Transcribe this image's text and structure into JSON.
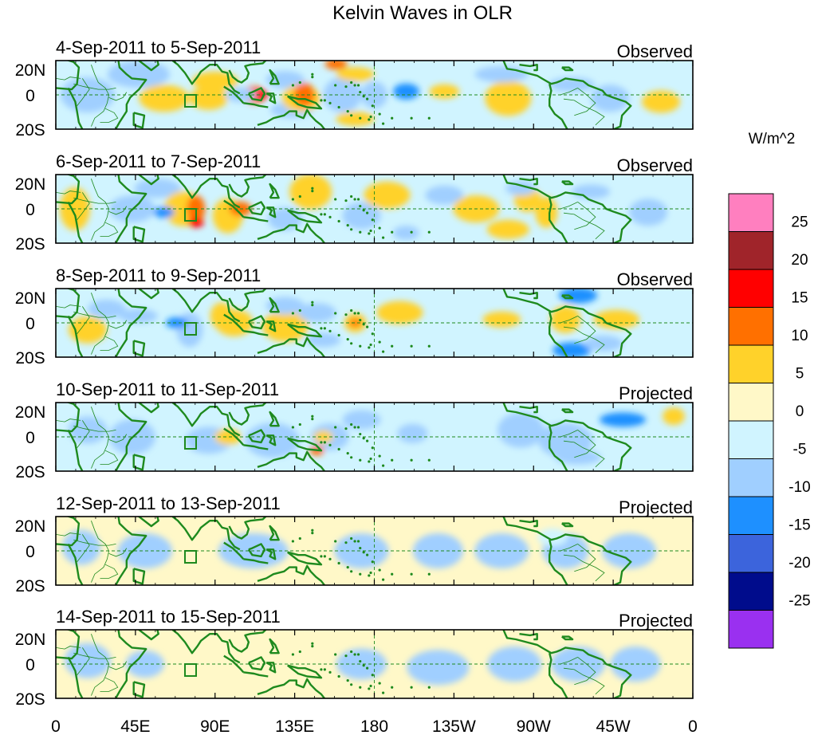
{
  "title": "Kelvin Waves in OLR",
  "units_label": "W/m^2",
  "lat_labels": [
    "20N",
    "0",
    "20S"
  ],
  "lon_labels": [
    "0",
    "45E",
    "90E",
    "135E",
    "180",
    "135W",
    "90W",
    "45W",
    "0"
  ],
  "panels": [
    {
      "date_range": "4-Sep-2011 to 5-Sep-2011",
      "status": "Observed"
    },
    {
      "date_range": "6-Sep-2011 to 7-Sep-2011",
      "status": "Observed"
    },
    {
      "date_range": "8-Sep-2011 to 9-Sep-2011",
      "status": "Observed"
    },
    {
      "date_range": "10-Sep-2011 to 11-Sep-2011",
      "status": "Projected"
    },
    {
      "date_range": "12-Sep-2011 to 13-Sep-2011",
      "status": "Projected"
    },
    {
      "date_range": "14-Sep-2011 to 15-Sep-2011",
      "status": "Projected"
    }
  ],
  "colorbar": {
    "labels": [
      "25",
      "20",
      "15",
      "10",
      "5",
      "0",
      "-5",
      "-10",
      "-15",
      "-20",
      "-25"
    ],
    "colors": [
      "#ff7fbf",
      "#a0242a",
      "#ff0000",
      "#ff7000",
      "#ffd22a",
      "#fff8c8",
      "#d0f4ff",
      "#a0cfff",
      "#1e90ff",
      "#3c64dc",
      "#000c8c",
      "#9a30f0"
    ]
  },
  "colors": {
    "coastline": "#1e8a1e",
    "frame": "#000000",
    "reference_line": "#1e8a1e"
  }
}
